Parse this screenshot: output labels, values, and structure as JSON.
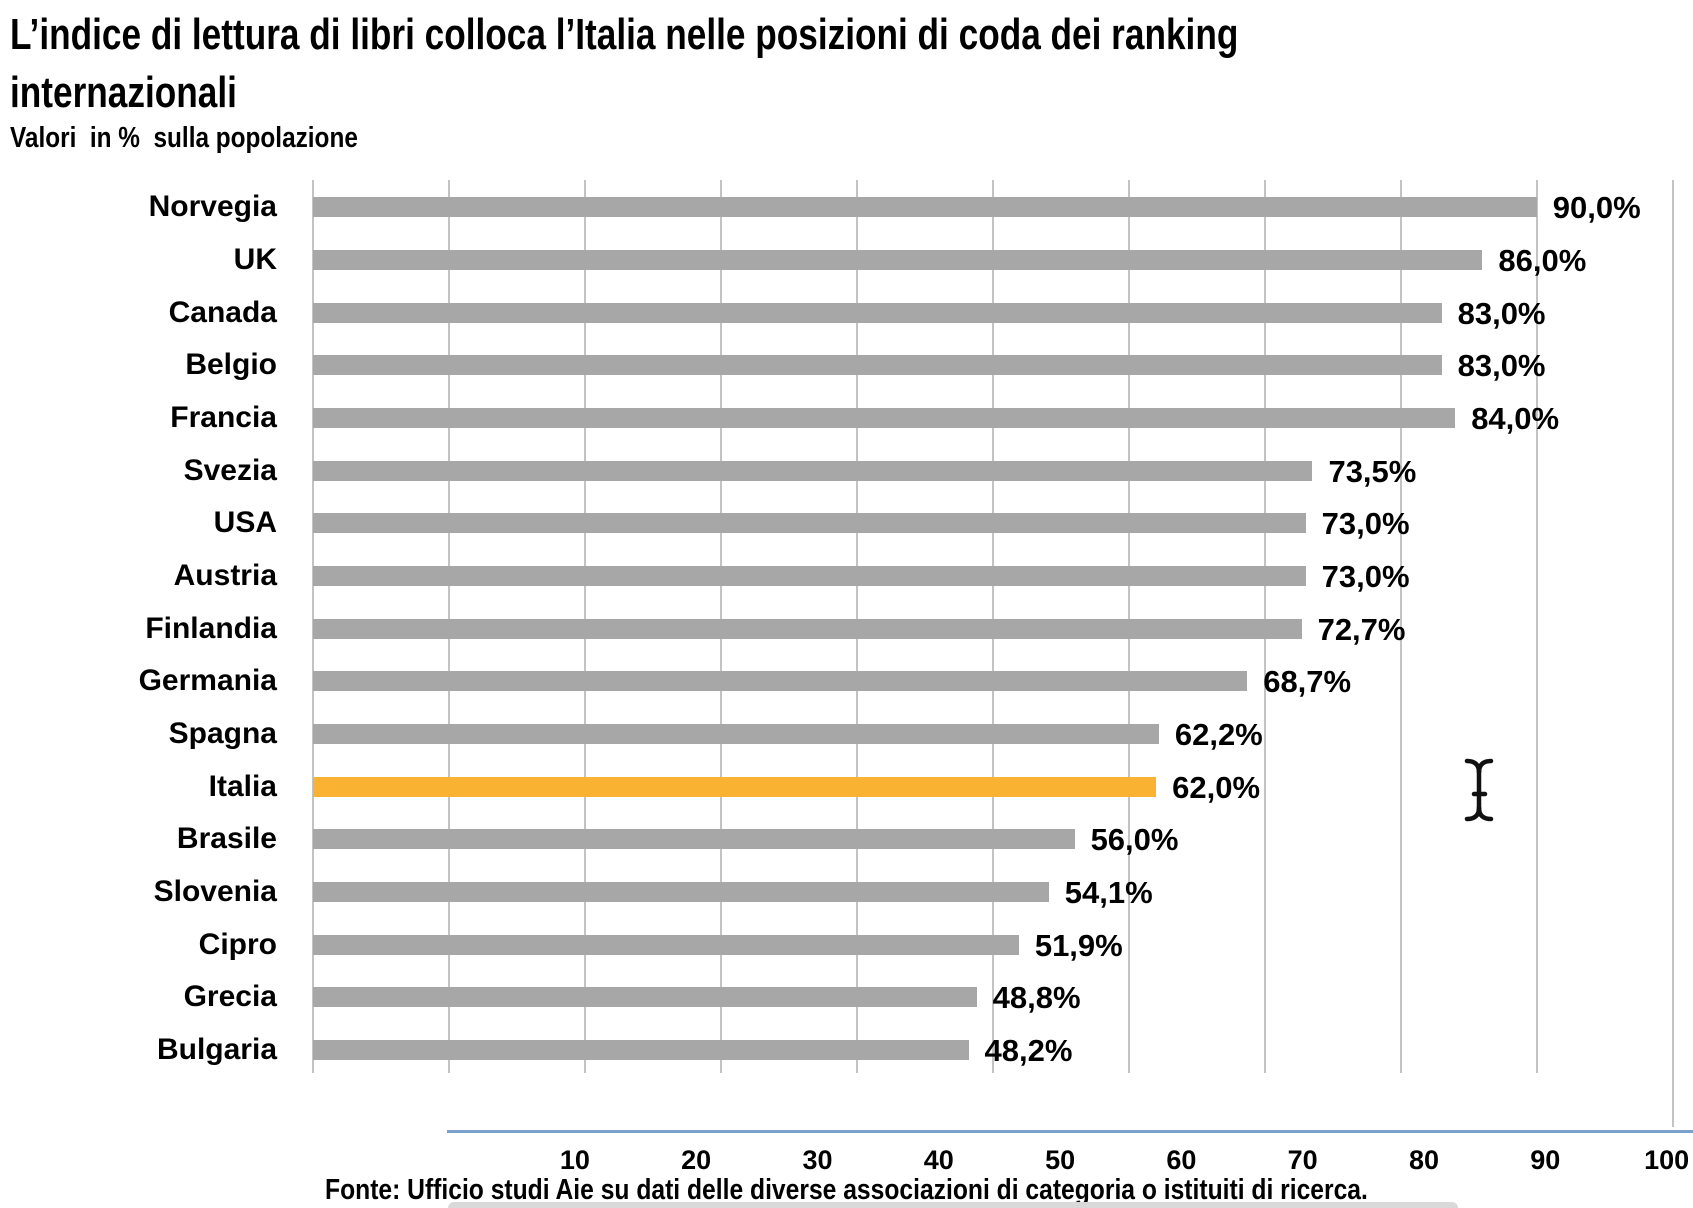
{
  "header": {
    "title_line1": "L’indice di lettura di libri colloca l’Italia nelle posizioni di coda dei ranking",
    "title_line2": "internazionali",
    "subtitle": "Valori  in %  sulla popolazione"
  },
  "footer": {
    "source": "Fonte: Ufficio studi Aie su dati delle diverse associazioni di categoria o istituiti di ricerca."
  },
  "cursor": {
    "icon": "text-ibeam-cursor"
  },
  "colors": {
    "bar": "#a7a7a7",
    "highlight": "#fab232",
    "gridline": "#c3c3c3",
    "axis_line": "#7ca2cb",
    "text": "#000000",
    "bottom_strip": "#d9d9d9"
  },
  "chart_data": {
    "type": "bar",
    "orientation": "horizontal",
    "title": "L’indice di lettura di libri colloca l’Italia nelle posizioni di coda dei ranking internazionali",
    "subtitle": "Valori in % sulla popolazione",
    "categories": [
      "Norvegia",
      "UK",
      "Canada",
      "Belgio",
      "Francia",
      "Svezia",
      "USA",
      "Austria",
      "Finlandia",
      "Germania",
      "Spagna",
      "Italia",
      "Brasile",
      "Slovenia",
      "Cipro",
      "Grecia",
      "Bulgaria"
    ],
    "values": [
      90.0,
      86.0,
      83.0,
      83.0,
      84.0,
      73.5,
      73.0,
      73.0,
      72.7,
      68.7,
      62.2,
      62.0,
      56.0,
      54.1,
      51.9,
      48.8,
      48.2
    ],
    "value_labels": [
      "90,0%",
      "86,0%",
      "83,0%",
      "83,0%",
      "84,0%",
      "73,5%",
      "73,0%",
      "73,0%",
      "72,7%",
      "68,7%",
      "62,2%",
      "62,0%",
      "56,0%",
      "54,1%",
      "51,9%",
      "48,8%",
      "48,2%"
    ],
    "highlight_category": "Italia",
    "xlim": [
      0,
      100
    ],
    "gridline_values": [
      0,
      10,
      20,
      30,
      40,
      50,
      60,
      70,
      80,
      90,
      100
    ],
    "x_tick_labels": [
      "10",
      "20",
      "30",
      "40",
      "50",
      "60",
      "70",
      "80",
      "90",
      "100"
    ],
    "legend": "none",
    "grid": "vertical",
    "source": "Fonte: Ufficio studi Aie su dati delle diverse associazioni di categoria o istituiti di ricerca."
  }
}
